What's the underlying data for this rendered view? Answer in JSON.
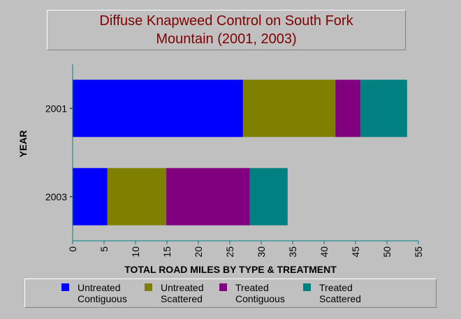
{
  "chart_data": {
    "type": "bar",
    "orientation": "horizontal",
    "stacked": true,
    "title_lines": [
      "Diffuse Knapweed Control on South Fork",
      "Mountain (2001, 2003)"
    ],
    "xlabel": "TOTAL ROAD MILES BY TYPE & TREATMENT",
    "ylabel": "YEAR",
    "categories": [
      "2001",
      "2003"
    ],
    "xlim": [
      0,
      55
    ],
    "xticks": [
      0,
      5,
      10,
      15,
      20,
      25,
      30,
      35,
      40,
      45,
      50,
      55
    ],
    "grid": false,
    "legend_position": "bottom",
    "series": [
      {
        "name": "Untreated Contiguous",
        "legend_lines": [
          "Untreated",
          "Contiguous"
        ],
        "color": "#0000ff",
        "values": [
          27.1,
          5.5
        ]
      },
      {
        "name": "Untreated Scattered",
        "legend_lines": [
          "Untreated",
          "Scattered"
        ],
        "color": "#808000",
        "values": [
          14.7,
          9.4
        ]
      },
      {
        "name": "Treated Contiguous",
        "legend_lines": [
          "Treated",
          "Contiguous"
        ],
        "color": "#800080",
        "values": [
          4.0,
          13.3
        ]
      },
      {
        "name": "Treated Scattered",
        "legend_lines": [
          "Treated",
          "Scattered"
        ],
        "color": "#008080",
        "values": [
          7.4,
          6.0
        ]
      }
    ]
  }
}
